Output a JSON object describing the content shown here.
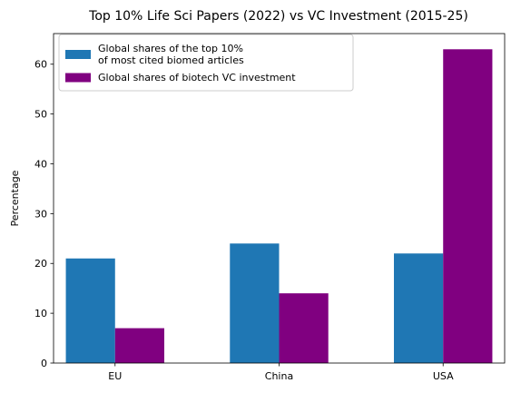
{
  "chart_data": {
    "type": "bar",
    "title": "Top 10% Life Sci Papers (2022) vs VC Investment (2015-25)",
    "xlabel": "",
    "ylabel": "Percentage",
    "categories": [
      "EU",
      "China",
      "USA"
    ],
    "series": [
      {
        "name_lines": [
          "Global shares of the top 10%",
          "of most cited biomed articles"
        ],
        "values": [
          21,
          24,
          22
        ],
        "color": "#1f77b4"
      },
      {
        "name_lines": [
          "Global shares of biotech VC investment"
        ],
        "values": [
          7,
          14,
          63
        ],
        "color": "#800080"
      }
    ],
    "ylim": [
      0,
      66.15
    ],
    "yticks": [
      0,
      10,
      20,
      30,
      40,
      50,
      60
    ],
    "grid": false,
    "legend_position": "top-left"
  }
}
